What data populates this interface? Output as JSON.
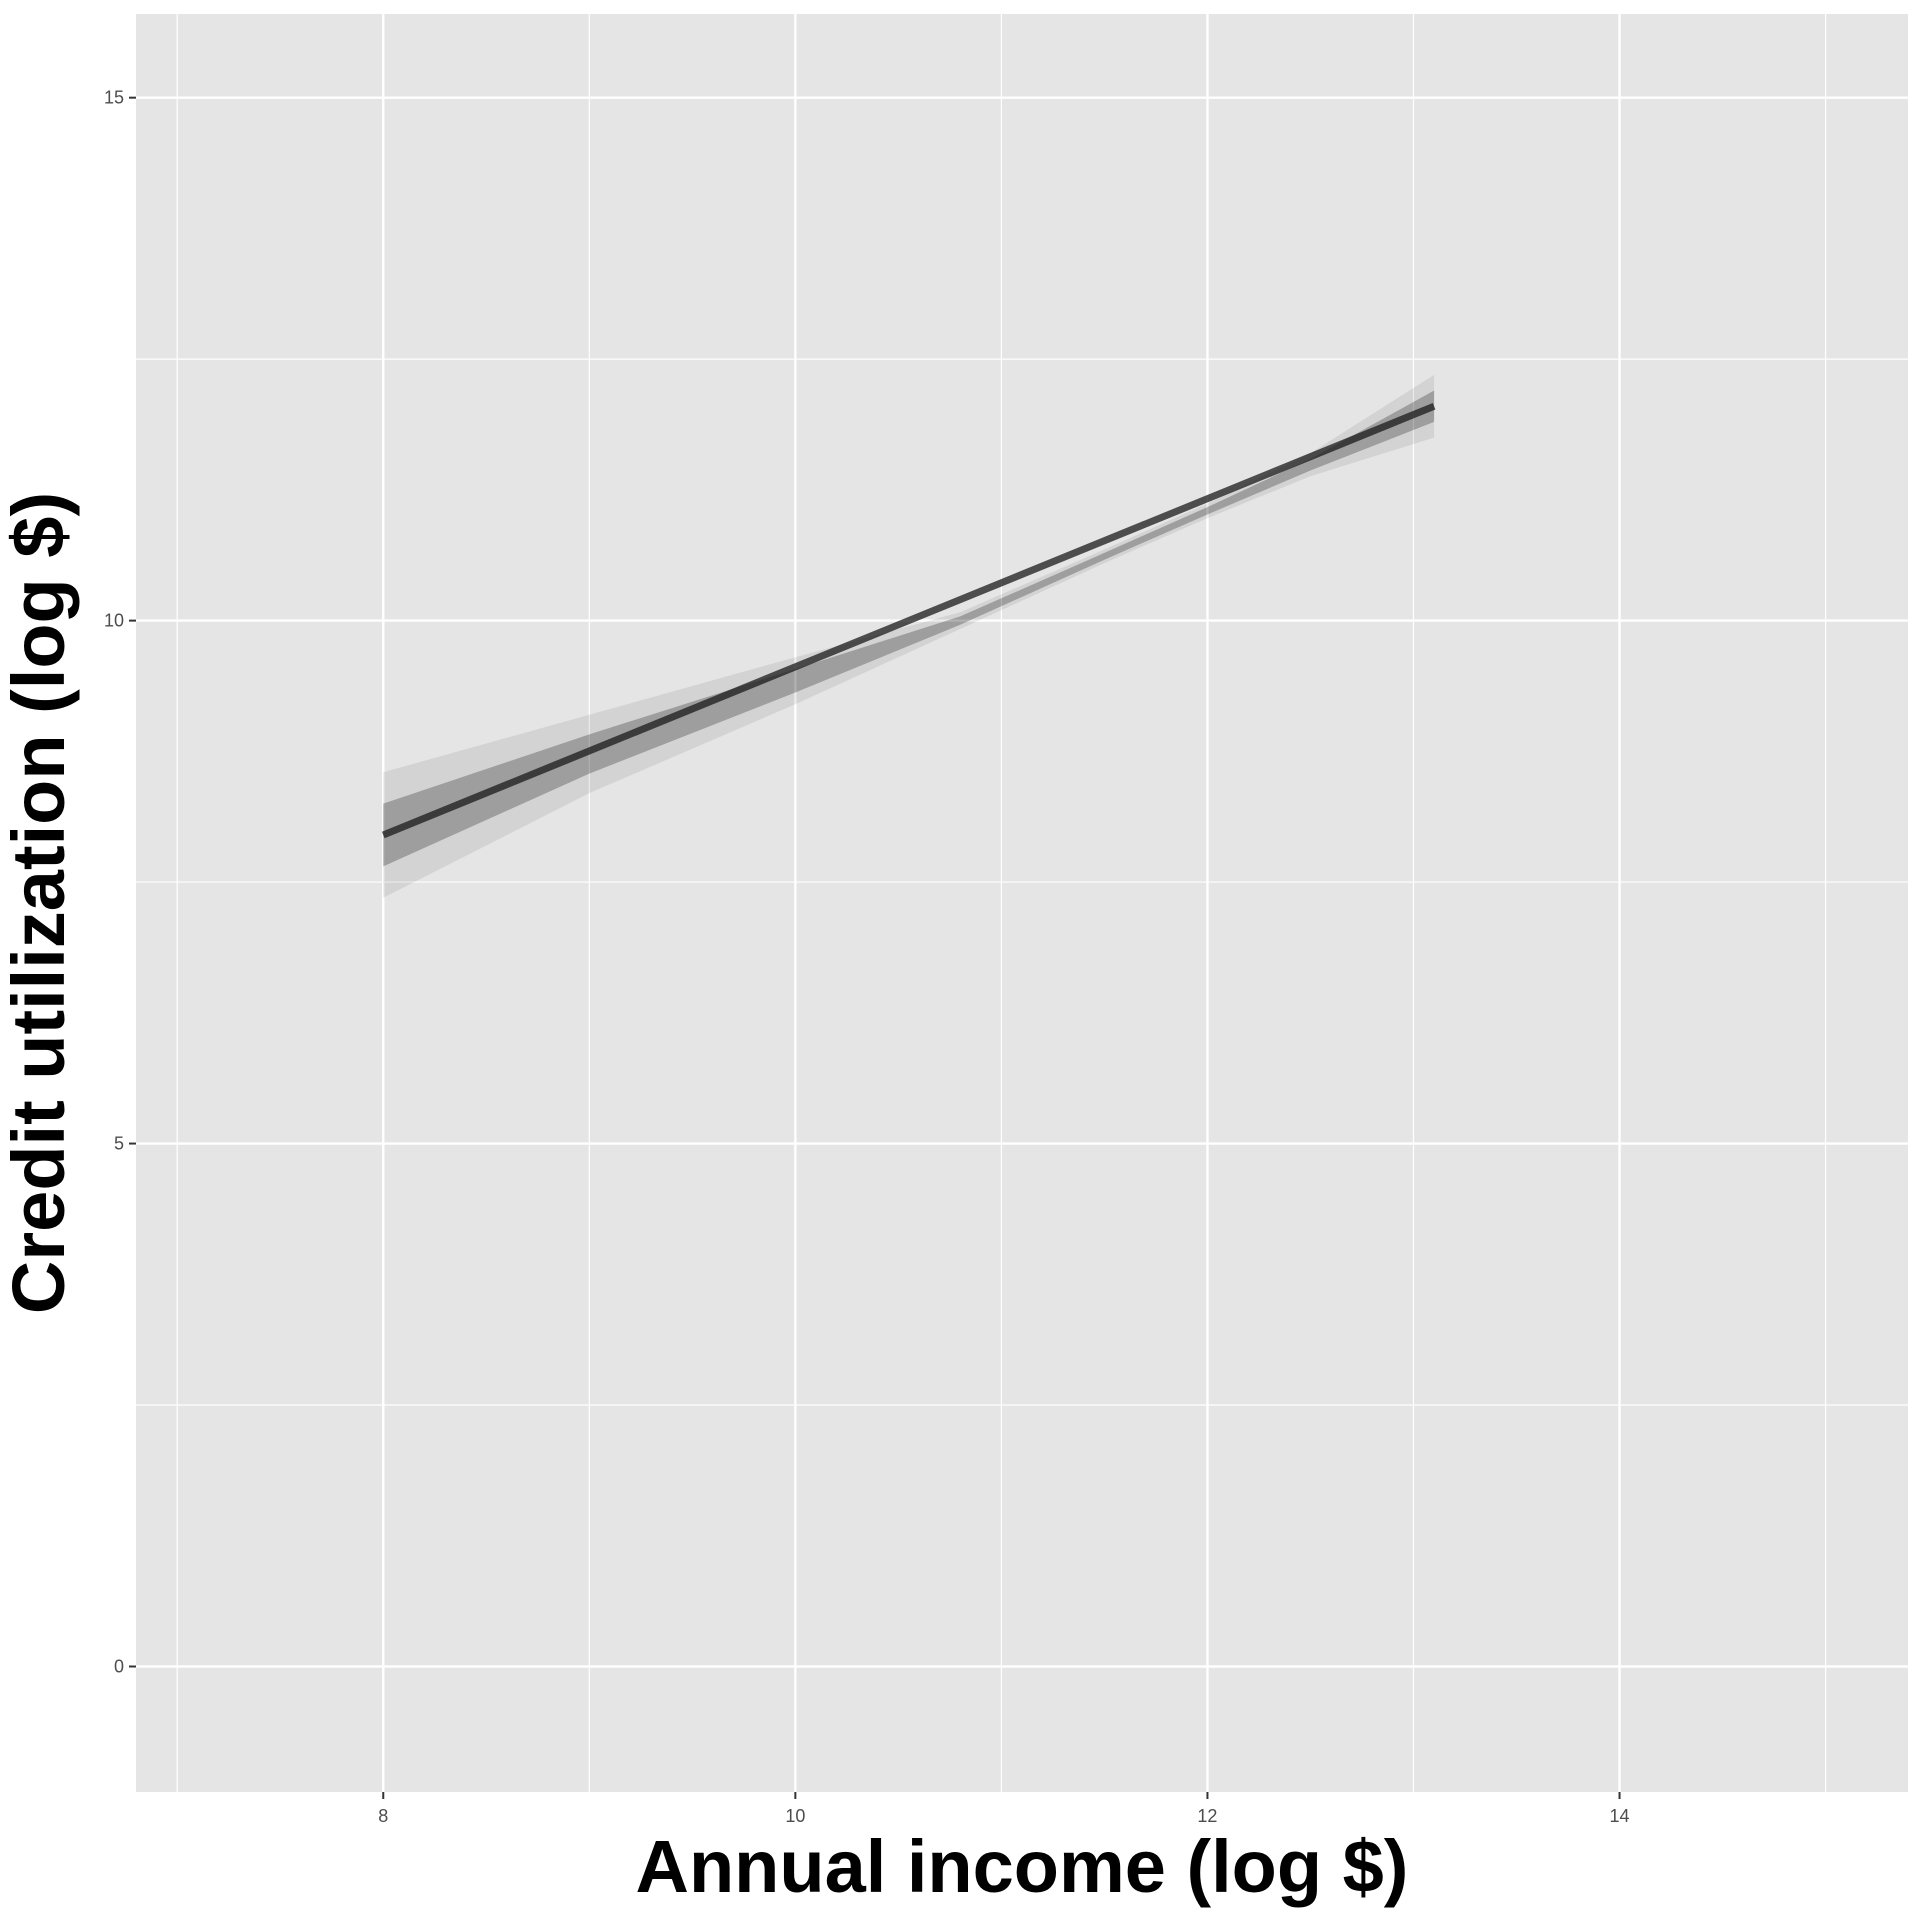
{
  "chart_data": {
    "type": "line",
    "title": "",
    "xlabel": "Annual income (log $)",
    "ylabel": "Credit utilization (log $)",
    "xlim": [
      6.8,
      15.4
    ],
    "ylim": [
      -1.2,
      15.8
    ],
    "x_ticks": [
      8,
      10,
      12,
      14
    ],
    "y_ticks": [
      0,
      5,
      10,
      15
    ],
    "x_tick_labels": [
      "8",
      "10",
      "12",
      "14"
    ],
    "y_tick_labels": [
      "0",
      "5",
      "10",
      "15"
    ],
    "grid": true,
    "legend": "none",
    "colors": {
      "panel": "#e5e5e5",
      "grid": "#ffffff",
      "line": "#1a1a1a"
    },
    "series": [
      {
        "x": [
          8.0,
          13.1
        ],
        "y": [
          7.95,
          12.05
        ]
      }
    ],
    "band": {
      "x": [
        8.0,
        9.0,
        10.0,
        10.8,
        11.5,
        12.0,
        12.5,
        13.1
      ],
      "y_lower": [
        7.35,
        8.35,
        9.2,
        9.92,
        10.55,
        10.98,
        11.38,
        11.75
      ],
      "y_upper": [
        8.55,
        9.1,
        9.65,
        10.08,
        10.68,
        11.12,
        11.6,
        12.35
      ]
    }
  }
}
